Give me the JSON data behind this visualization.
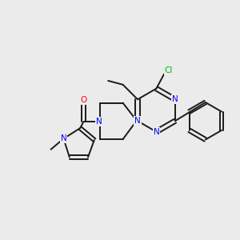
{
  "bg_color": "#ebebeb",
  "bond_color": "#1a1a1a",
  "N_color": "#0000ff",
  "O_color": "#ff0000",
  "Cl_color": "#00bb00",
  "lw": 1.4,
  "xlim": [
    -0.15,
    1.05
  ],
  "ylim": [
    -0.05,
    1.1
  ]
}
